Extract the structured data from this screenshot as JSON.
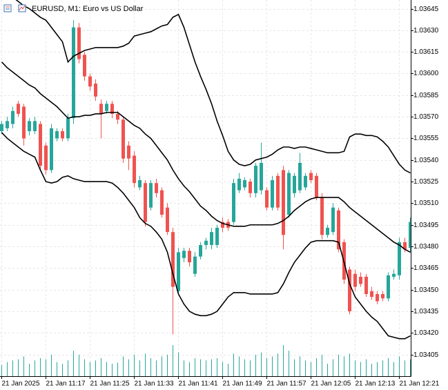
{
  "chart_data": {
    "type": "candlestick",
    "title": "EURUSD, M1:  Euro vs US Dollar",
    "categories": [
      "21 Jan 2025",
      null,
      null,
      null,
      null,
      null,
      null,
      null,
      "21 Jan 11:17",
      null,
      null,
      null,
      null,
      null,
      null,
      null,
      "21 Jan 11:25",
      null,
      null,
      null,
      null,
      null,
      null,
      null,
      "21 Jan 11:33",
      null,
      null,
      null,
      null,
      null,
      null,
      null,
      "21 Jan 11:41",
      null,
      null,
      null,
      null,
      null,
      null,
      null,
      "21 Jan 11:49",
      null,
      null,
      null,
      null,
      null,
      null,
      null,
      "21 Jan 11:57",
      null,
      null,
      null,
      null,
      null,
      null,
      null,
      "21 Jan 12:05",
      null,
      null,
      null,
      null,
      null,
      null,
      null,
      "21 Jan 12:13",
      null,
      null,
      null,
      null,
      null,
      null,
      null,
      "21 Jan 12:21",
      null,
      null
    ],
    "open": [
      1.0356,
      1.03562,
      1.03565,
      1.03579,
      1.03577,
      1.0356,
      1.0356,
      1.03565,
      1.0355,
      1.03533,
      1.03555,
      1.0356,
      1.03555,
      1.03569,
      1.03632,
      1.03613,
      1.03598,
      1.03593,
      1.03579,
      1.03574,
      1.03579,
      1.03572,
      1.03568,
      1.0355,
      1.03543,
      1.03521,
      1.03524,
      1.03507,
      1.03524,
      1.03519,
      1.03507,
      1.0349,
      1.03449,
      1.03472,
      1.03477,
      1.03461,
      1.03473,
      1.03481,
      1.03481,
      1.03481,
      1.03497,
      1.03497,
      1.03497,
      1.03519,
      1.03521,
      1.03525,
      1.03517,
      1.03519,
      1.03519,
      1.03507,
      1.03529,
      1.03533,
      1.03502,
      1.03517,
      1.03519,
      1.03521,
      1.03531,
      1.03529,
      1.03514,
      1.03488,
      1.0349,
      1.03505,
      1.03483,
      1.03464,
      1.03461,
      1.03459,
      1.03459,
      1.03449,
      1.03447,
      1.03447,
      1.03444,
      1.03459,
      1.0346,
      1.03483,
      1.03479
    ],
    "high": [
      1.03567,
      1.0357,
      1.03577,
      1.03581,
      1.03579,
      1.03569,
      1.0357,
      1.03567,
      1.03552,
      1.03565,
      1.03562,
      1.03562,
      1.03572,
      1.03637,
      1.03635,
      1.03615,
      1.036,
      1.03596,
      1.03582,
      1.03581,
      1.03581,
      1.03574,
      1.0357,
      1.03553,
      1.03546,
      1.03529,
      1.03526,
      1.03526,
      1.03527,
      1.03521,
      1.0351,
      1.03493,
      1.03479,
      1.03479,
      1.03479,
      1.03476,
      1.03483,
      1.03486,
      1.03493,
      1.03495,
      1.035,
      1.03499,
      1.03527,
      1.03531,
      1.03528,
      1.03527,
      1.03538,
      1.03552,
      1.03521,
      1.03529,
      1.03531,
      1.03536,
      1.03533,
      1.03531,
      1.03545,
      1.03531,
      1.03533,
      1.03531,
      1.03517,
      1.03495,
      1.0351,
      1.03507,
      1.03485,
      1.03466,
      1.03464,
      1.03462,
      1.03461,
      1.03452,
      1.03449,
      1.03449,
      1.03462,
      1.03464,
      1.03486,
      1.03486,
      1.035
    ],
    "low": [
      1.03558,
      1.0356,
      1.03562,
      1.0357,
      1.0355,
      1.03557,
      1.03558,
      1.03533,
      1.0353,
      1.03531,
      1.03553,
      1.03553,
      1.03553,
      1.03565,
      1.03607,
      1.03595,
      1.03588,
      1.03581,
      1.03555,
      1.03572,
      1.03569,
      1.03565,
      1.03538,
      1.03533,
      1.03521,
      1.03519,
      1.03494,
      1.03505,
      1.03514,
      1.035,
      1.03488,
      1.03419,
      1.03447,
      1.03469,
      1.03466,
      1.03459,
      1.03471,
      1.03478,
      1.03478,
      1.03479,
      1.0349,
      1.03491,
      1.03495,
      1.03517,
      1.03519,
      1.03514,
      1.03514,
      1.03516,
      1.03505,
      1.03505,
      1.03505,
      1.03478,
      1.035,
      1.03514,
      1.03517,
      1.03519,
      1.03524,
      1.03512,
      1.03485,
      1.03486,
      1.03488,
      1.03476,
      1.03454,
      1.03433,
      1.03449,
      1.03452,
      1.03445,
      1.03443,
      1.0344,
      1.03442,
      1.03442,
      1.03457,
      1.03457,
      1.03476,
      1.03476
    ],
    "close": [
      1.03565,
      1.03567,
      1.03574,
      1.03572,
      1.03555,
      1.03567,
      1.03567,
      1.03536,
      1.03533,
      1.03562,
      1.0356,
      1.03555,
      1.03569,
      1.03632,
      1.0361,
      1.03598,
      1.03591,
      1.03584,
      1.03572,
      1.03579,
      1.03572,
      1.03568,
      1.03541,
      1.03541,
      1.03524,
      1.03526,
      1.03497,
      1.03524,
      1.03517,
      1.03502,
      1.0349,
      1.03452,
      1.03476,
      1.03477,
      1.03469,
      1.03473,
      1.03481,
      1.03484,
      1.0349,
      1.03493,
      1.03493,
      1.03493,
      1.03524,
      1.03527,
      1.03526,
      1.03517,
      1.03536,
      1.03538,
      1.03507,
      1.03526,
      1.03507,
      1.03488,
      1.03531,
      1.03529,
      1.03538,
      1.03529,
      1.03526,
      1.03514,
      1.03488,
      1.03493,
      1.03507,
      1.03478,
      1.03457,
      1.03435,
      1.03452,
      1.03454,
      1.03447,
      1.03445,
      1.03442,
      1.03444,
      1.0346,
      1.03461,
      1.03483,
      1.03478,
      1.03497
    ],
    "up_color": "#26a69a",
    "down_color": "#ef5350",
    "bands": [
      {
        "color": "#000000",
        "values": [
          1.03663,
          1.03658,
          1.03653,
          1.0365,
          1.03647,
          1.03645,
          1.03642,
          1.03639,
          1.03637,
          1.03632,
          1.03627,
          1.03622,
          1.03608,
          1.03612,
          1.03614,
          1.03616,
          1.03617,
          1.03618,
          1.03618,
          1.03618,
          1.03618,
          1.03618,
          1.03619,
          1.03621,
          1.03626,
          1.03627,
          1.03628,
          1.03629,
          1.03631,
          1.03633,
          1.03634,
          1.03639,
          1.03641,
          1.03632,
          1.0362,
          1.03608,
          1.03598,
          1.03589,
          1.03579,
          1.03567,
          1.03557,
          1.03546,
          1.0354,
          1.03537,
          1.03536,
          1.03537,
          1.0354,
          1.03541,
          1.03542,
          1.03544,
          1.03547,
          1.03549,
          1.03549,
          1.03548,
          1.03549,
          1.03549,
          1.03548,
          1.03547,
          1.03546,
          1.03545,
          1.03545,
          1.03545,
          1.03546,
          1.03556,
          1.03558,
          1.03558,
          1.03557,
          1.03557,
          1.03556,
          1.03553,
          1.03549,
          1.03543,
          1.03537,
          1.03533,
          1.03531
        ]
      },
      {
        "color": "#000000",
        "values": [
          1.03608,
          1.03604,
          1.03601,
          1.03598,
          1.03595,
          1.03592,
          1.0359,
          1.03586,
          1.03583,
          1.0358,
          1.03577,
          1.03573,
          1.03569,
          1.0357,
          1.0357,
          1.03571,
          1.03571,
          1.03572,
          1.03572,
          1.03573,
          1.03573,
          1.03573,
          1.0357,
          1.03567,
          1.03564,
          1.03562,
          1.03558,
          1.03555,
          1.0355,
          1.03545,
          1.0354,
          1.03533,
          1.03527,
          1.03522,
          1.03518,
          1.03513,
          1.03508,
          1.03505,
          1.03501,
          1.03498,
          1.03496,
          1.03495,
          1.03494,
          1.03494,
          1.03494,
          1.03495,
          1.03495,
          1.03495,
          1.03495,
          1.03495,
          1.03496,
          1.03498,
          1.03501,
          1.03505,
          1.03508,
          1.03511,
          1.03513,
          1.03514,
          1.03514,
          1.03514,
          1.03514,
          1.03514,
          1.03511,
          1.03507,
          1.03504,
          1.03501,
          1.03498,
          1.03495,
          1.03492,
          1.03489,
          1.03486,
          1.03483,
          1.03481,
          1.03478,
          1.03476
        ]
      },
      {
        "color": "#000000",
        "values": [
          1.03559,
          1.03555,
          1.03552,
          1.03549,
          1.03546,
          1.03544,
          1.03542,
          1.03533,
          1.03525,
          1.03524,
          1.03525,
          1.03528,
          1.03529,
          1.03527,
          1.03526,
          1.03525,
          1.03525,
          1.03525,
          1.03525,
          1.03525,
          1.03524,
          1.03521,
          1.03517,
          1.03512,
          1.03507,
          1.035,
          1.03496,
          1.03494,
          1.0349,
          1.03485,
          1.03476,
          1.03461,
          1.03447,
          1.0344,
          1.03435,
          1.03433,
          1.03432,
          1.03432,
          1.03433,
          1.03435,
          1.0344,
          1.03445,
          1.03448,
          1.03448,
          1.03448,
          1.03447,
          1.03447,
          1.03447,
          1.03447,
          1.03447,
          1.03448,
          1.03454,
          1.03462,
          1.03469,
          1.03474,
          1.03479,
          1.03483,
          1.03484,
          1.03484,
          1.03484,
          1.03484,
          1.03483,
          1.03469,
          1.03454,
          1.03445,
          1.0344,
          1.03435,
          1.03431,
          1.03428,
          1.03423,
          1.03418,
          1.03417,
          1.03416,
          1.03416,
          1.03418
        ]
      }
    ],
    "volume": {
      "color": "#26a69a",
      "values": [
        20,
        25,
        28,
        30,
        35,
        22,
        28,
        32,
        30,
        38,
        25,
        22,
        28,
        45,
        38,
        30,
        25,
        28,
        32,
        25,
        22,
        24,
        35,
        30,
        38,
        28,
        40,
        32,
        28,
        35,
        38,
        55,
        42,
        28,
        25,
        32,
        30,
        28,
        30,
        32,
        25,
        22,
        40,
        35,
        30,
        28,
        38,
        42,
        32,
        35,
        40,
        55,
        45,
        30,
        35,
        28,
        25,
        32,
        38,
        22,
        30,
        38,
        35,
        40,
        28,
        25,
        30,
        22,
        25,
        28,
        32,
        25,
        35,
        28,
        30
      ]
    },
    "ylim": [
      1.0339,
      1.03651
    ],
    "yticks": [
      1.03645,
      {
        "value": 1.0363,
        "label": "1.03630"
      },
      1.03615,
      {
        "value": 1.036,
        "label": "1.03600"
      },
      1.03585,
      {
        "value": 1.0357,
        "label": "1.03570"
      },
      1.03555,
      {
        "value": 1.0354,
        "label": "1.03540"
      },
      1.03525,
      {
        "value": 1.0351,
        "label": "1.03510"
      },
      1.03495,
      {
        "value": 1.0348,
        "label": "1.03480"
      },
      1.03465,
      {
        "value": 1.0345,
        "label": "1.03450"
      },
      1.03435,
      {
        "value": 1.0342,
        "label": "1.03420"
      },
      1.03405
    ],
    "grid": true
  }
}
